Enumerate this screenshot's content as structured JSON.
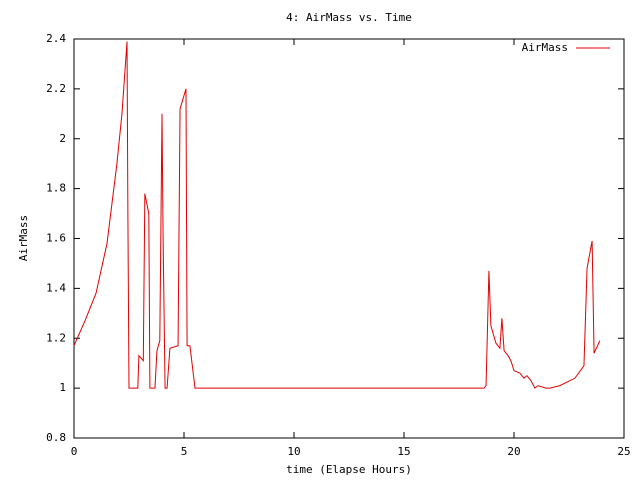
{
  "chart_data": {
    "type": "line",
    "title": "4: AirMass vs. Time",
    "xlabel": "time (Elapse Hours)",
    "ylabel": "AirMass",
    "xlim": [
      0,
      25
    ],
    "ylim": [
      0.8,
      2.4
    ],
    "xticks": [
      0,
      5,
      10,
      15,
      20,
      25
    ],
    "yticks": [
      0.8,
      1,
      1.2,
      1.4,
      1.6,
      1.8,
      2,
      2.2,
      2.4
    ],
    "legend": "top-right",
    "series": [
      {
        "name": "AirMass",
        "color": "#e00000",
        "x": [
          0,
          0.5,
          1.0,
          1.5,
          1.95,
          2.18,
          2.41,
          2.45,
          2.5,
          2.9,
          2.95,
          3.15,
          3.22,
          3.4,
          3.45,
          3.68,
          3.77,
          3.9,
          4.0,
          4.05,
          4.14,
          4.23,
          4.36,
          4.73,
          4.82,
          5.09,
          5.14,
          5.27,
          5.5,
          5.7,
          18.64,
          18.73,
          18.86,
          18.95,
          19.18,
          19.36,
          19.45,
          19.55,
          19.73,
          19.86,
          20.0,
          20.27,
          20.45,
          20.59,
          20.77,
          20.95,
          21.09,
          21.45,
          21.64,
          22.09,
          22.77,
          23.18,
          23.32,
          23.55,
          23.64,
          23.9
        ],
        "values": [
          1.17,
          1.27,
          1.38,
          1.58,
          1.9,
          2.1,
          2.39,
          1.69,
          1.0,
          1.0,
          1.13,
          1.11,
          1.78,
          1.7,
          1.0,
          1.0,
          1.15,
          1.19,
          2.1,
          1.6,
          1.0,
          1.0,
          1.16,
          1.17,
          2.12,
          2.2,
          1.17,
          1.17,
          1.0,
          1.0,
          1.0,
          1.01,
          1.47,
          1.25,
          1.18,
          1.16,
          1.28,
          1.15,
          1.13,
          1.11,
          1.07,
          1.06,
          1.04,
          1.05,
          1.03,
          1.0,
          1.01,
          1.0,
          1.0,
          1.01,
          1.04,
          1.09,
          1.48,
          1.59,
          1.14,
          1.19
        ]
      }
    ]
  }
}
